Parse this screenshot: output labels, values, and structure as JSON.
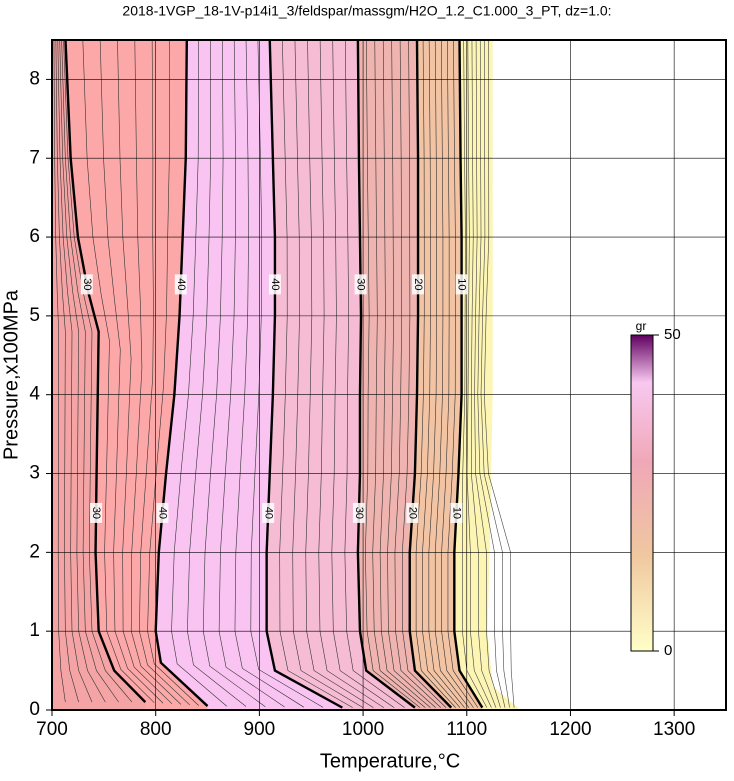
{
  "chart_data": {
    "type": "contour",
    "title": "2018-1VGP_18-1V-p14i1_3/feldspar/massgm/H2O_1.2_C1.000_3_PT, dz=1.0:",
    "x_label": "Temperature,°C",
    "y_label": "Pressure,x100MPa",
    "xlim": [
      700,
      1350
    ],
    "ylim": [
      0,
      8.5
    ],
    "xticks": [
      700,
      800,
      900,
      1000,
      1100,
      1200,
      1300
    ],
    "yticks": [
      0,
      1,
      2,
      3,
      4,
      5,
      6,
      7,
      8
    ],
    "grid": true,
    "contours": [
      {
        "level": 30,
        "x": [
          713,
          718,
          725,
          735,
          745,
          743,
          742,
          745,
          760,
          790
        ],
        "y": [
          8.5,
          7,
          6,
          5.3,
          4.8,
          3,
          2,
          1,
          0.5,
          0.1
        ]
      },
      {
        "level": 40,
        "x": [
          830,
          829,
          826,
          823,
          818,
          810,
          803,
          800,
          805,
          850
        ],
        "y": [
          8.5,
          7,
          6,
          5,
          4,
          3,
          2,
          1,
          0.6,
          0.05
        ]
      },
      {
        "level": 40,
        "x": [
          910,
          913,
          915,
          915,
          913,
          910,
          907,
          907,
          915,
          980
        ],
        "y": [
          8.5,
          7,
          6,
          5,
          4,
          3,
          2,
          1,
          0.5,
          0.03
        ]
      },
      {
        "level": 30,
        "x": [
          995,
          996,
          997,
          998,
          997,
          997,
          995,
          997,
          1003,
          1050
        ],
        "y": [
          8.5,
          7,
          6,
          5,
          4,
          3,
          2,
          1,
          0.5,
          0.03
        ]
      },
      {
        "level": 20,
        "x": [
          1052,
          1053,
          1053,
          1053,
          1052,
          1050,
          1045,
          1045,
          1050,
          1085
        ],
        "y": [
          8.5,
          7,
          6,
          5,
          4,
          3,
          2,
          1,
          0.5,
          0.03
        ]
      },
      {
        "level": 10,
        "x": [
          1093,
          1094,
          1095,
          1095,
          1095,
          1092,
          1088,
          1088,
          1093,
          1115
        ],
        "y": [
          8.5,
          7,
          6,
          5,
          4,
          3,
          2,
          1,
          0.5,
          0.03
        ]
      }
    ],
    "colorbar": {
      "label": "gr",
      "lim": [
        0,
        50
      ],
      "ticks": [
        0,
        50
      ]
    }
  }
}
